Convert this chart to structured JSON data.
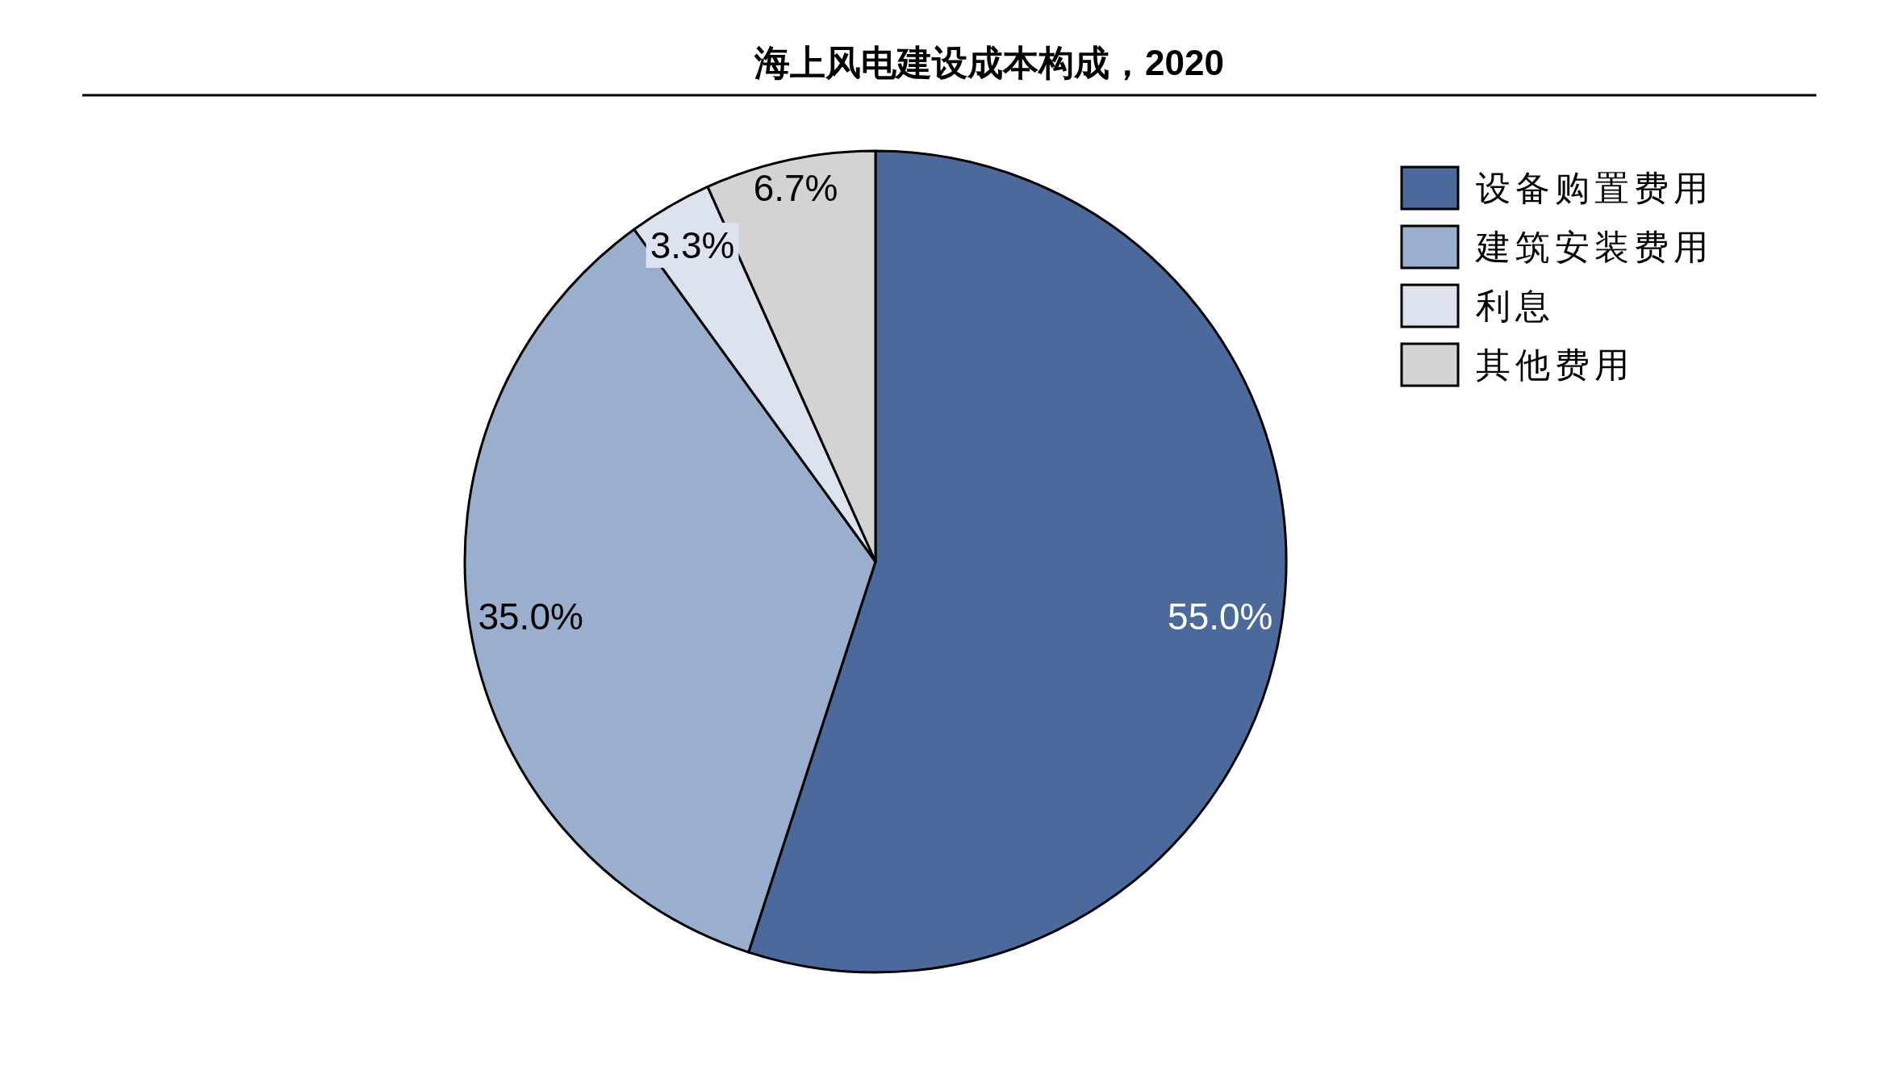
{
  "chart_data": {
    "type": "pie",
    "title": "海上风电建设成本构成，2020",
    "categories": [
      "设备购置费用",
      "建筑安装费用",
      "利息",
      "其他费用"
    ],
    "values": [
      55.0,
      35.0,
      3.3,
      6.7
    ],
    "colors": [
      "#4b6a9b",
      "#9aaecd",
      "#dce3ee",
      "#d3d3d3"
    ],
    "value_labels": [
      "55.0%",
      "35.0%",
      "3.3%",
      "6.7%"
    ],
    "legend": "top right"
  }
}
